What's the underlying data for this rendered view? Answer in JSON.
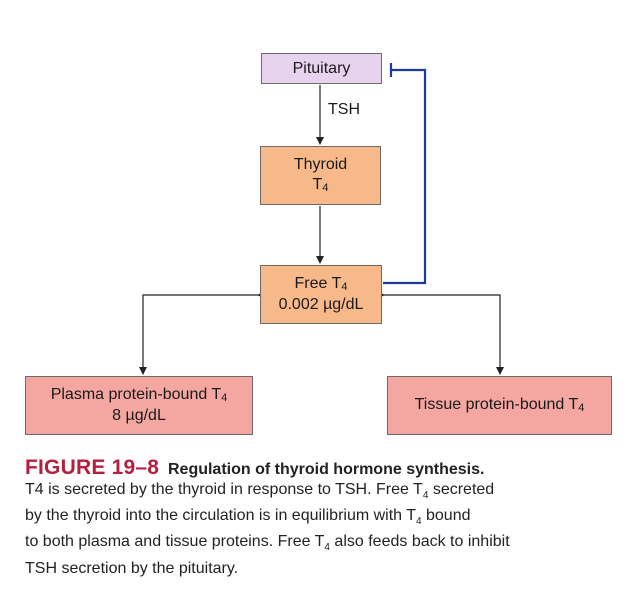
{
  "nodes": {
    "pituitary": {
      "label": "Pituitary"
    },
    "thyroid": {
      "line1": "Thyroid",
      "line2": "T",
      "line2_sub": "4"
    },
    "free_t4": {
      "line1": "Free T",
      "line1_sub": "4",
      "line2": "0.002 µg/dL"
    },
    "plasma": {
      "line1": "Plasma protein-bound T",
      "line1_sub": "4",
      "line2": "8 µg/dL"
    },
    "tissue": {
      "line1": "Tissue protein-bound T",
      "line1_sub": "4"
    }
  },
  "edges": {
    "tsh_label": "TSH"
  },
  "colors": {
    "pituitary_fill": "#e8d3ee",
    "thyroid_fill": "#f7b98a",
    "bound_fill": "#f4a6a0",
    "feedback_line": "#1b3a9a",
    "figure_label": "#b51f3f"
  },
  "caption": {
    "figure_number": "FIGURE 19–8",
    "title": "Regulation of thyroid hormone synthesis.",
    "l1": "T4 is secreted by the thyroid in response to TSH. Free T",
    "l1_sub": "4",
    "l1_end": " secreted",
    "l2": "by the thyroid into the circulation is in equilibrium with T",
    "l2_sub": "4",
    "l2_end": " bound",
    "l3": "to both plasma and tissue proteins. Free T",
    "l3_sub": "4",
    "l3_end": " also feeds back to inhibit",
    "l4": "TSH secretion by the pituitary."
  }
}
